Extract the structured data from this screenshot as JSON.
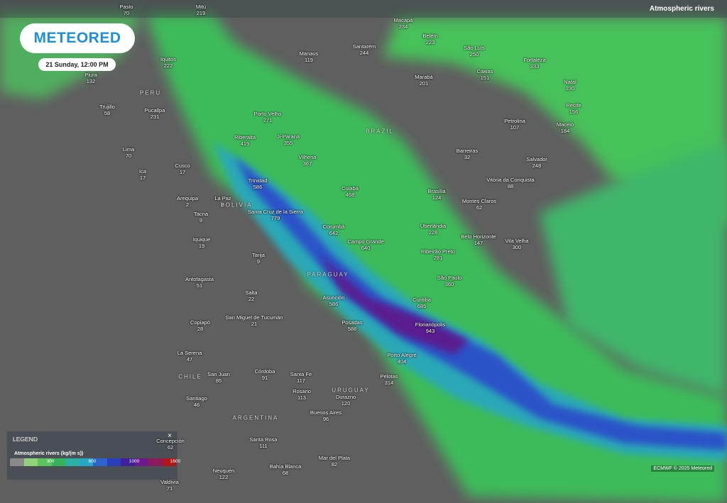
{
  "header": {
    "title": "Atmospheric rivers",
    "logo": "METEORED",
    "date": "21 Sunday, 12:00 PM"
  },
  "countries": [
    "PERU",
    "BRAZIL",
    "BOLIVIA",
    "PARAGUAY",
    "CHILE",
    "ARGENTINA",
    "URUGUAY"
  ],
  "cities": [
    {
      "name": "Pasto",
      "value": 70
    },
    {
      "name": "Mitú",
      "value": 219
    },
    {
      "name": "Macapá",
      "value": 234
    },
    {
      "name": "Belém",
      "value": 223
    },
    {
      "name": "Santarém",
      "value": 244
    },
    {
      "name": "São Luís",
      "value": 250
    },
    {
      "name": "Fortaleza",
      "value": 333
    },
    {
      "name": "Manaus",
      "value": 119
    },
    {
      "name": "Iquitos",
      "value": 222
    },
    {
      "name": "Piura",
      "value": 132
    },
    {
      "name": "Marabá",
      "value": 201
    },
    {
      "name": "Caxias",
      "value": 151
    },
    {
      "name": "Natal",
      "value": 230
    },
    {
      "name": "Trujillo",
      "value": 58
    },
    {
      "name": "Recife",
      "value": 156
    },
    {
      "name": "Pucallpa",
      "value": 231
    },
    {
      "name": "Porto Velho",
      "value": 271
    },
    {
      "name": "Petrolina",
      "value": 107
    },
    {
      "name": "Maceió",
      "value": 184
    },
    {
      "name": "Riberalta",
      "value": 419
    },
    {
      "name": "Ji-Paraná",
      "value": 355
    },
    {
      "name": "Lima",
      "value": 70
    },
    {
      "name": "Vilhena",
      "value": 367
    },
    {
      "name": "Barreiras",
      "value": 32
    },
    {
      "name": "Salvador",
      "value": 248
    },
    {
      "name": "Cusco",
      "value": 17
    },
    {
      "name": "Ica",
      "value": 17
    },
    {
      "name": "Trinidad",
      "value": 586
    },
    {
      "name": "Cuiabá",
      "value": 468
    },
    {
      "name": "Brasília",
      "value": 124
    },
    {
      "name": "Vitória da Conquista",
      "value": 88
    },
    {
      "name": "Arequipa",
      "value": 2
    },
    {
      "name": "La Paz",
      "value": 8
    },
    {
      "name": "Montes Claros",
      "value": 62
    },
    {
      "name": "Santa Cruz de la Sierra",
      "value": 779
    },
    {
      "name": "Tacna",
      "value": 9
    },
    {
      "name": "Corumbá",
      "value": 642
    },
    {
      "name": "Uberlândia",
      "value": 228
    },
    {
      "name": "Iquique",
      "value": 19
    },
    {
      "name": "Campo Grande",
      "value": 640
    },
    {
      "name": "Belo Horizonte",
      "value": 147
    },
    {
      "name": "Vila Velha",
      "value": 300
    },
    {
      "name": "Ribeirão Preto",
      "value": 281
    },
    {
      "name": "Tarija",
      "value": 9
    },
    {
      "name": "Antofagasta",
      "value": 51
    },
    {
      "name": "São Paulo",
      "value": 360
    },
    {
      "name": "Salta",
      "value": 22
    },
    {
      "name": "Asunción",
      "value": 586
    },
    {
      "name": "Curitiba",
      "value": 685
    },
    {
      "name": "San Miguel de Tucumán",
      "value": 21
    },
    {
      "name": "Posadas",
      "value": 588
    },
    {
      "name": "Florianópolis",
      "value": 943
    },
    {
      "name": "Copiapó",
      "value": 28
    },
    {
      "name": "La Serena",
      "value": 47
    },
    {
      "name": "Porto Alegre",
      "value": 404
    },
    {
      "name": "San Juan",
      "value": 85
    },
    {
      "name": "Córdoba",
      "value": 91
    },
    {
      "name": "Santa Fe",
      "value": 117
    },
    {
      "name": "Pelotas",
      "value": 314
    },
    {
      "name": "Rosario",
      "value": 113
    },
    {
      "name": "Durazno",
      "value": 120
    },
    {
      "name": "Santiago",
      "value": 46
    },
    {
      "name": "Buenos Aires",
      "value": 96
    },
    {
      "name": "Santa Rosa",
      "value": 111
    },
    {
      "name": "Concepción",
      "value": 62
    },
    {
      "name": "Mar del Plata",
      "value": 82
    },
    {
      "name": "Bahía Blanca",
      "value": 68
    },
    {
      "name": "Neuquén",
      "value": 122
    },
    {
      "name": "Valdivia",
      "value": 71
    }
  ],
  "legend": {
    "title": "LEGEND",
    "close": "×",
    "subtitle": "Atmospheric rivers (kg/(m s))",
    "ticks": [
      300,
      600,
      1000,
      1600
    ]
  },
  "credit": "ECMWF © 2025 Meteored"
}
